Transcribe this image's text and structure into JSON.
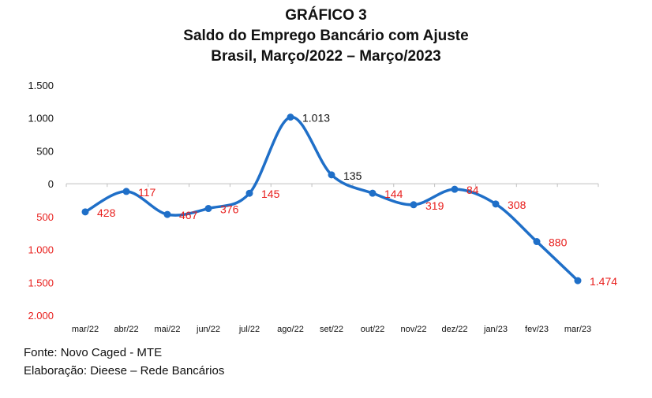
{
  "title_lines": [
    "GRÁFICO 3",
    "Saldo do Emprego Bancário com Ajuste",
    "Brasil, Março/2022 – Março/2023"
  ],
  "footer": {
    "source": "Fonte: Novo Caged - MTE",
    "credit": "Elaboração: Dieese – Rede Bancários"
  },
  "chart_data": {
    "type": "line",
    "categories": [
      "mar/22",
      "abr/22",
      "mai/22",
      "jun/22",
      "jul/22",
      "ago/22",
      "set/22",
      "out/22",
      "nov/22",
      "dez/22",
      "jan/23",
      "fev/23",
      "mar/23"
    ],
    "series": [
      {
        "values": [
          -428,
          -117,
          -467,
          -376,
          -145,
          1013,
          135,
          -144,
          -319,
          -84,
          -308,
          -880,
          -1474
        ]
      }
    ],
    "data_labels": [
      "428",
      "117",
      "467",
      "376",
      "145",
      "1.013",
      "135",
      "144",
      "319",
      "84",
      "308",
      "880",
      "1.474"
    ],
    "y_ticks": [
      1500,
      1000,
      500,
      0,
      -500,
      -1000,
      -1500,
      -2000
    ],
    "y_tick_labels": [
      "1.500",
      "1.000",
      "500",
      "0",
      "500",
      "1.000",
      "1.500",
      "2.000"
    ],
    "ylim": [
      -2000,
      1500
    ],
    "colors": {
      "line": "#1f6fc8",
      "positive": "#111111",
      "negative": "#e8201e"
    },
    "grid": false
  }
}
